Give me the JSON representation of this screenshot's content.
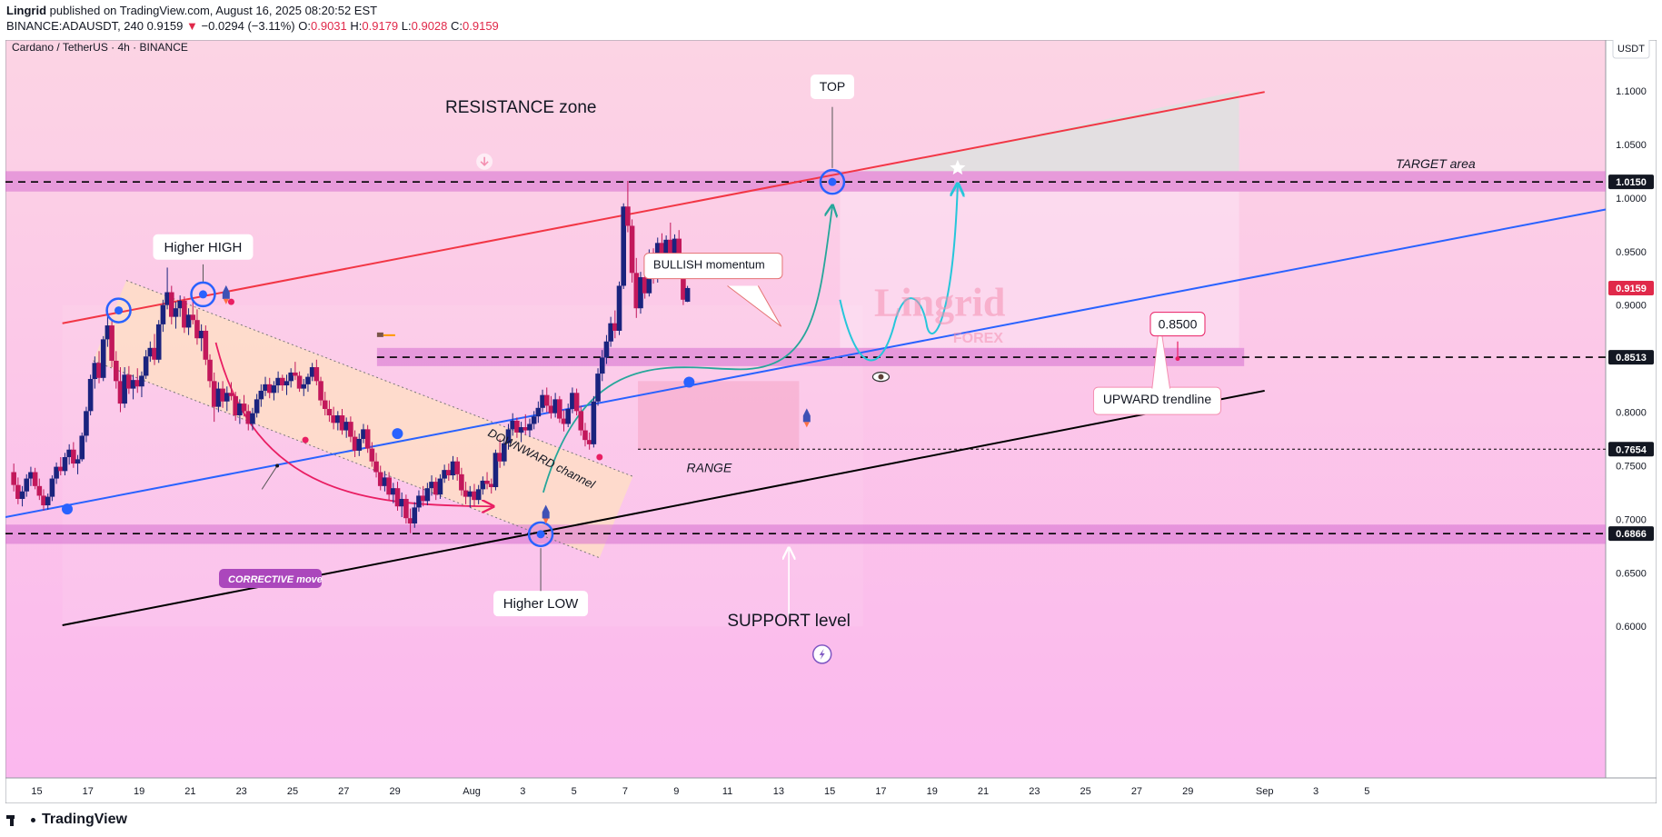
{
  "header": {
    "author": "Lingrid",
    "published_text": "published on TradingView.com, August 16, 2025 08:20:52 EST",
    "symbol_line": "BINANCE:ADAUSDT, 240",
    "last_price": "0.9159",
    "change": "−0.0294 (−3.11%)",
    "ohlc": {
      "o_label": "O:",
      "o": "0.9031",
      "h_label": "H:",
      "h": "0.9179",
      "l_label": "L:",
      "l": "0.9028",
      "c_label": "C:",
      "c": "0.9159"
    }
  },
  "chart_title": "Cardano / TetherUS · 4h · BINANCE",
  "currency": "USDT",
  "footer": {
    "brand": "TradingView"
  },
  "colors": {
    "candle_up": "#1a237e",
    "candle_down": "#c2185b",
    "resistance_line": "#f23645",
    "trendline": "#2962ff",
    "support_line": "#000000",
    "projection": "#00bcd4",
    "zone": "#d56fcf"
  },
  "chart_data": {
    "type": "candlestick",
    "symbol": "ADAUSDT",
    "timeframe": "4h",
    "exchange": "BINANCE",
    "x_ticks": [
      "15",
      "17",
      "19",
      "21",
      "23",
      "25",
      "27",
      "29",
      "Aug",
      "3",
      "5",
      "7",
      "9",
      "11",
      "13",
      "15",
      "17",
      "19",
      "21",
      "23",
      "25",
      "27",
      "29",
      "Sep",
      "3",
      "5"
    ],
    "y_ticks": [
      "1.1000",
      "1.0500",
      "1.0000",
      "0.9500",
      "0.9000",
      "0.8000",
      "0.7500",
      "0.7000",
      "0.6500",
      "0.6000"
    ],
    "ylim": [
      0.575,
      1.14
    ],
    "price_badges": [
      {
        "label": "1.0150",
        "value": 1.015,
        "style": "dark"
      },
      {
        "label": "0.9159",
        "value": 0.9159,
        "style": "red"
      },
      {
        "label": "0.8513",
        "value": 0.8513,
        "style": "dark"
      },
      {
        "label": "0.7654",
        "value": 0.7654,
        "style": "dark"
      },
      {
        "label": "0.6866",
        "value": 0.6866,
        "style": "dark"
      }
    ],
    "horizontal_levels": [
      1.015,
      0.8513,
      0.7654,
      0.6866
    ],
    "zones": [
      {
        "name": "resistance band",
        "top": 1.025,
        "bottom": 1.006
      },
      {
        "name": "0.85 band",
        "top": 0.86,
        "bottom": 0.843
      },
      {
        "name": "support band",
        "top": 0.695,
        "bottom": 0.677
      }
    ],
    "annotations": {
      "resistance_zone": "RESISTANCE zone",
      "top": "TOP",
      "target_area": "TARGET area",
      "higher_high": "Higher HIGH",
      "higher_low": "Higher LOW",
      "bullish_momentum": "BULLISH momentum",
      "downward_channel": "DOWNWARD channel",
      "corrective_move": "CORRECTIVE move",
      "range": "RANGE",
      "upward_trendline": "UPWARD trendline",
      "target_level": "0.8500",
      "support_level": "SUPPORT level",
      "watermark": "Lingrid",
      "watermark_sub": "FOREX"
    },
    "trendlines": [
      {
        "name": "resistance",
        "from": [
          "Jul 16",
          0.883
        ],
        "to": [
          "Sep 1",
          1.099
        ]
      },
      {
        "name": "upward trendline",
        "from": [
          "Jul 14",
          0.703
        ],
        "to": [
          "Sep 6",
          0.951
        ]
      },
      {
        "name": "support",
        "from": [
          "Jul 16",
          0.601
        ],
        "to": [
          "Sep 1",
          0.82
        ]
      }
    ],
    "candles": [
      [
        0.744,
        0.752,
        0.726,
        0.732
      ],
      [
        0.732,
        0.739,
        0.714,
        0.719
      ],
      [
        0.719,
        0.731,
        0.712,
        0.726
      ],
      [
        0.726,
        0.742,
        0.721,
        0.738
      ],
      [
        0.738,
        0.749,
        0.731,
        0.744
      ],
      [
        0.744,
        0.748,
        0.728,
        0.731
      ],
      [
        0.731,
        0.738,
        0.718,
        0.722
      ],
      [
        0.722,
        0.728,
        0.708,
        0.713
      ],
      [
        0.713,
        0.724,
        0.709,
        0.721
      ],
      [
        0.721,
        0.741,
        0.717,
        0.738
      ],
      [
        0.738,
        0.753,
        0.733,
        0.749
      ],
      [
        0.749,
        0.758,
        0.741,
        0.745
      ],
      [
        0.745,
        0.762,
        0.741,
        0.758
      ],
      [
        0.758,
        0.77,
        0.751,
        0.765
      ],
      [
        0.765,
        0.772,
        0.748,
        0.752
      ],
      [
        0.752,
        0.76,
        0.742,
        0.756
      ],
      [
        0.756,
        0.781,
        0.754,
        0.778
      ],
      [
        0.778,
        0.805,
        0.772,
        0.801
      ],
      [
        0.801,
        0.835,
        0.797,
        0.831
      ],
      [
        0.831,
        0.852,
        0.822,
        0.846
      ],
      [
        0.846,
        0.857,
        0.827,
        0.832
      ],
      [
        0.832,
        0.871,
        0.829,
        0.868
      ],
      [
        0.868,
        0.895,
        0.861,
        0.881
      ],
      [
        0.881,
        0.887,
        0.842,
        0.848
      ],
      [
        0.848,
        0.857,
        0.822,
        0.829
      ],
      [
        0.829,
        0.842,
        0.8,
        0.808
      ],
      [
        0.808,
        0.842,
        0.804,
        0.835
      ],
      [
        0.835,
        0.843,
        0.817,
        0.822
      ],
      [
        0.822,
        0.835,
        0.812,
        0.83
      ],
      [
        0.83,
        0.841,
        0.818,
        0.824
      ],
      [
        0.824,
        0.838,
        0.814,
        0.834
      ],
      [
        0.834,
        0.858,
        0.831,
        0.852
      ],
      [
        0.852,
        0.866,
        0.847,
        0.86
      ],
      [
        0.86,
        0.873,
        0.844,
        0.849
      ],
      [
        0.849,
        0.886,
        0.846,
        0.882
      ],
      [
        0.882,
        0.905,
        0.875,
        0.9
      ],
      [
        0.9,
        0.935,
        0.896,
        0.912
      ],
      [
        0.912,
        0.918,
        0.882,
        0.889
      ],
      [
        0.889,
        0.903,
        0.878,
        0.897
      ],
      [
        0.897,
        0.909,
        0.889,
        0.904
      ],
      [
        0.904,
        0.908,
        0.874,
        0.879
      ],
      [
        0.879,
        0.897,
        0.872,
        0.891
      ],
      [
        0.891,
        0.905,
        0.882,
        0.886
      ],
      [
        0.886,
        0.896,
        0.863,
        0.869
      ],
      [
        0.869,
        0.882,
        0.857,
        0.876
      ],
      [
        0.876,
        0.881,
        0.844,
        0.849
      ],
      [
        0.849,
        0.854,
        0.823,
        0.829
      ],
      [
        0.829,
        0.837,
        0.791,
        0.805
      ],
      [
        0.805,
        0.828,
        0.8,
        0.822
      ],
      [
        0.822,
        0.829,
        0.804,
        0.81
      ],
      [
        0.81,
        0.824,
        0.801,
        0.818
      ],
      [
        0.818,
        0.828,
        0.811,
        0.815
      ],
      [
        0.815,
        0.819,
        0.792,
        0.797
      ],
      [
        0.797,
        0.812,
        0.789,
        0.808
      ],
      [
        0.808,
        0.816,
        0.796,
        0.801
      ],
      [
        0.801,
        0.807,
        0.783,
        0.789
      ],
      [
        0.789,
        0.804,
        0.783,
        0.799
      ],
      [
        0.799,
        0.817,
        0.795,
        0.812
      ],
      [
        0.812,
        0.826,
        0.805,
        0.82
      ],
      [
        0.82,
        0.833,
        0.815,
        0.826
      ],
      [
        0.826,
        0.832,
        0.813,
        0.818
      ],
      [
        0.818,
        0.829,
        0.811,
        0.825
      ],
      [
        0.825,
        0.838,
        0.818,
        0.832
      ],
      [
        0.832,
        0.835,
        0.82,
        0.825
      ],
      [
        0.825,
        0.835,
        0.816,
        0.829
      ],
      [
        0.829,
        0.841,
        0.823,
        0.837
      ],
      [
        0.837,
        0.847,
        0.83,
        0.834
      ],
      [
        0.834,
        0.838,
        0.819,
        0.822
      ],
      [
        0.822,
        0.831,
        0.815,
        0.826
      ],
      [
        0.826,
        0.836,
        0.819,
        0.833
      ],
      [
        0.833,
        0.846,
        0.829,
        0.842
      ],
      [
        0.842,
        0.849,
        0.825,
        0.829
      ],
      [
        0.829,
        0.833,
        0.806,
        0.811
      ],
      [
        0.811,
        0.819,
        0.797,
        0.803
      ],
      [
        0.803,
        0.811,
        0.791,
        0.797
      ],
      [
        0.797,
        0.805,
        0.784,
        0.79
      ],
      [
        0.79,
        0.801,
        0.783,
        0.797
      ],
      [
        0.797,
        0.803,
        0.779,
        0.783
      ],
      [
        0.783,
        0.795,
        0.776,
        0.791
      ],
      [
        0.791,
        0.796,
        0.772,
        0.777
      ],
      [
        0.777,
        0.783,
        0.758,
        0.764
      ],
      [
        0.764,
        0.78,
        0.759,
        0.775
      ],
      [
        0.775,
        0.789,
        0.771,
        0.784
      ],
      [
        0.784,
        0.788,
        0.762,
        0.766
      ],
      [
        0.766,
        0.772,
        0.749,
        0.754
      ],
      [
        0.754,
        0.762,
        0.739,
        0.744
      ],
      [
        0.744,
        0.75,
        0.727,
        0.731
      ],
      [
        0.731,
        0.745,
        0.726,
        0.739
      ],
      [
        0.739,
        0.744,
        0.718,
        0.723
      ],
      [
        0.723,
        0.734,
        0.715,
        0.729
      ],
      [
        0.729,
        0.735,
        0.708,
        0.712
      ],
      [
        0.712,
        0.725,
        0.702,
        0.719
      ],
      [
        0.719,
        0.723,
        0.696,
        0.701
      ],
      [
        0.701,
        0.71,
        0.687,
        0.696
      ],
      [
        0.696,
        0.716,
        0.692,
        0.711
      ],
      [
        0.711,
        0.727,
        0.707,
        0.722
      ],
      [
        0.722,
        0.731,
        0.712,
        0.717
      ],
      [
        0.717,
        0.734,
        0.713,
        0.729
      ],
      [
        0.729,
        0.741,
        0.722,
        0.735
      ],
      [
        0.735,
        0.739,
        0.718,
        0.723
      ],
      [
        0.723,
        0.742,
        0.719,
        0.738
      ],
      [
        0.738,
        0.751,
        0.734,
        0.746
      ],
      [
        0.746,
        0.752,
        0.736,
        0.741
      ],
      [
        0.741,
        0.759,
        0.737,
        0.754
      ],
      [
        0.754,
        0.758,
        0.736,
        0.742
      ],
      [
        0.742,
        0.748,
        0.722,
        0.727
      ],
      [
        0.727,
        0.735,
        0.714,
        0.721
      ],
      [
        0.721,
        0.731,
        0.711,
        0.726
      ],
      [
        0.726,
        0.733,
        0.712,
        0.718
      ],
      [
        0.718,
        0.732,
        0.714,
        0.728
      ],
      [
        0.728,
        0.74,
        0.723,
        0.736
      ],
      [
        0.736,
        0.744,
        0.728,
        0.733
      ],
      [
        0.733,
        0.738,
        0.724,
        0.73
      ],
      [
        0.73,
        0.765,
        0.727,
        0.762
      ],
      [
        0.762,
        0.775,
        0.748,
        0.754
      ],
      [
        0.754,
        0.776,
        0.75,
        0.771
      ],
      [
        0.771,
        0.789,
        0.765,
        0.784
      ],
      [
        0.784,
        0.799,
        0.778,
        0.792
      ],
      [
        0.792,
        0.795,
        0.776,
        0.781
      ],
      [
        0.781,
        0.791,
        0.772,
        0.786
      ],
      [
        0.786,
        0.798,
        0.779,
        0.783
      ],
      [
        0.783,
        0.794,
        0.777,
        0.789
      ],
      [
        0.789,
        0.801,
        0.784,
        0.796
      ],
      [
        0.796,
        0.81,
        0.79,
        0.804
      ],
      [
        0.804,
        0.821,
        0.8,
        0.816
      ],
      [
        0.816,
        0.823,
        0.8,
        0.806
      ],
      [
        0.806,
        0.815,
        0.794,
        0.799
      ],
      [
        0.799,
        0.818,
        0.795,
        0.812
      ],
      [
        0.812,
        0.815,
        0.79,
        0.794
      ],
      [
        0.794,
        0.802,
        0.782,
        0.789
      ],
      [
        0.789,
        0.808,
        0.786,
        0.803
      ],
      [
        0.803,
        0.823,
        0.799,
        0.818
      ],
      [
        0.818,
        0.822,
        0.797,
        0.801
      ],
      [
        0.801,
        0.806,
        0.778,
        0.783
      ],
      [
        0.783,
        0.79,
        0.768,
        0.774
      ],
      [
        0.774,
        0.781,
        0.765,
        0.77
      ],
      [
        0.77,
        0.815,
        0.767,
        0.81
      ],
      [
        0.81,
        0.841,
        0.806,
        0.836
      ],
      [
        0.836,
        0.858,
        0.829,
        0.851
      ],
      [
        0.851,
        0.872,
        0.845,
        0.866
      ],
      [
        0.866,
        0.889,
        0.861,
        0.883
      ],
      [
        0.883,
        0.895,
        0.869,
        0.876
      ],
      [
        0.876,
        0.922,
        0.872,
        0.918
      ],
      [
        0.918,
        0.995,
        0.915,
        0.992
      ],
      [
        0.992,
        1.016,
        0.968,
        0.974
      ],
      [
        0.974,
        0.98,
        0.921,
        0.93
      ],
      [
        0.93,
        0.944,
        0.888,
        0.897
      ],
      [
        0.897,
        0.931,
        0.892,
        0.926
      ],
      [
        0.926,
        0.938,
        0.906,
        0.911
      ],
      [
        0.911,
        0.952,
        0.908,
        0.946
      ],
      [
        0.946,
        0.953,
        0.92,
        0.926
      ],
      [
        0.926,
        0.963,
        0.921,
        0.958
      ],
      [
        0.958,
        0.967,
        0.932,
        0.938
      ],
      [
        0.938,
        0.965,
        0.934,
        0.961
      ],
      [
        0.961,
        0.977,
        0.94,
        0.946
      ],
      [
        0.946,
        0.966,
        0.943,
        0.962
      ],
      [
        0.962,
        0.97,
        0.928,
        0.935
      ],
      [
        0.935,
        0.943,
        0.9,
        0.905
      ],
      [
        0.9031,
        0.9179,
        0.9028,
        0.9159
      ]
    ]
  }
}
